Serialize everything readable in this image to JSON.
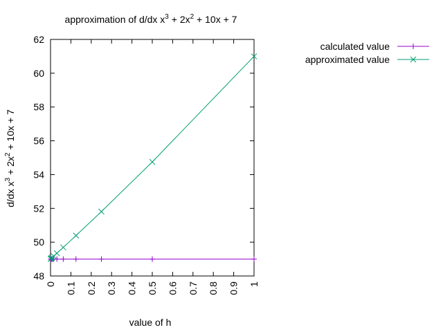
{
  "chart_data": {
    "type": "line",
    "title": "approximation of d/dx x",
    "title_parts": [
      "approximation of d/dx x",
      "3",
      " + 2x",
      "2",
      " + 10x + 7"
    ],
    "xlabel": "value of h",
    "ylabel_parts": [
      "d/dx x",
      "3",
      "  + 2x",
      "2",
      " + 10x + 7"
    ],
    "xlim": [
      0,
      1
    ],
    "ylim": [
      48,
      62
    ],
    "x_ticks": [
      0,
      0.1,
      0.2,
      0.3,
      0.4,
      0.5,
      0.6,
      0.7,
      0.8,
      0.9,
      1
    ],
    "x_tick_labels": [
      "0",
      "0.1",
      "0.2",
      "0.3",
      "0.4",
      "0.5",
      "0.6",
      "0.7",
      "0.8",
      "0.9",
      "1"
    ],
    "y_ticks": [
      48,
      50,
      52,
      54,
      56,
      58,
      60,
      62
    ],
    "y_tick_labels": [
      "48",
      "50",
      "52",
      "54",
      "56",
      "58",
      "60",
      "62"
    ],
    "grid": false,
    "legend_position": "outside-right-top",
    "x": [
      1,
      0.5,
      0.25,
      0.125,
      0.0625,
      0.03125,
      0.015625,
      0.0078125,
      0.00390625,
      0.001953125,
      0.0009765625
    ],
    "series": [
      {
        "name": "calculated value",
        "color": "#9400d3",
        "marker": "plus",
        "values": [
          49,
          49,
          49,
          49,
          49,
          49,
          49,
          49,
          49,
          49,
          49
        ]
      },
      {
        "name": "approximated value",
        "color": "#009e73",
        "marker": "cross",
        "values": [
          61,
          54.75,
          51.8125,
          50.390625,
          49.69140625,
          49.3447265625,
          49.1721191406,
          49.0859985352,
          49.0429840088,
          49.0214881897,
          49.0107431412
        ]
      }
    ]
  }
}
